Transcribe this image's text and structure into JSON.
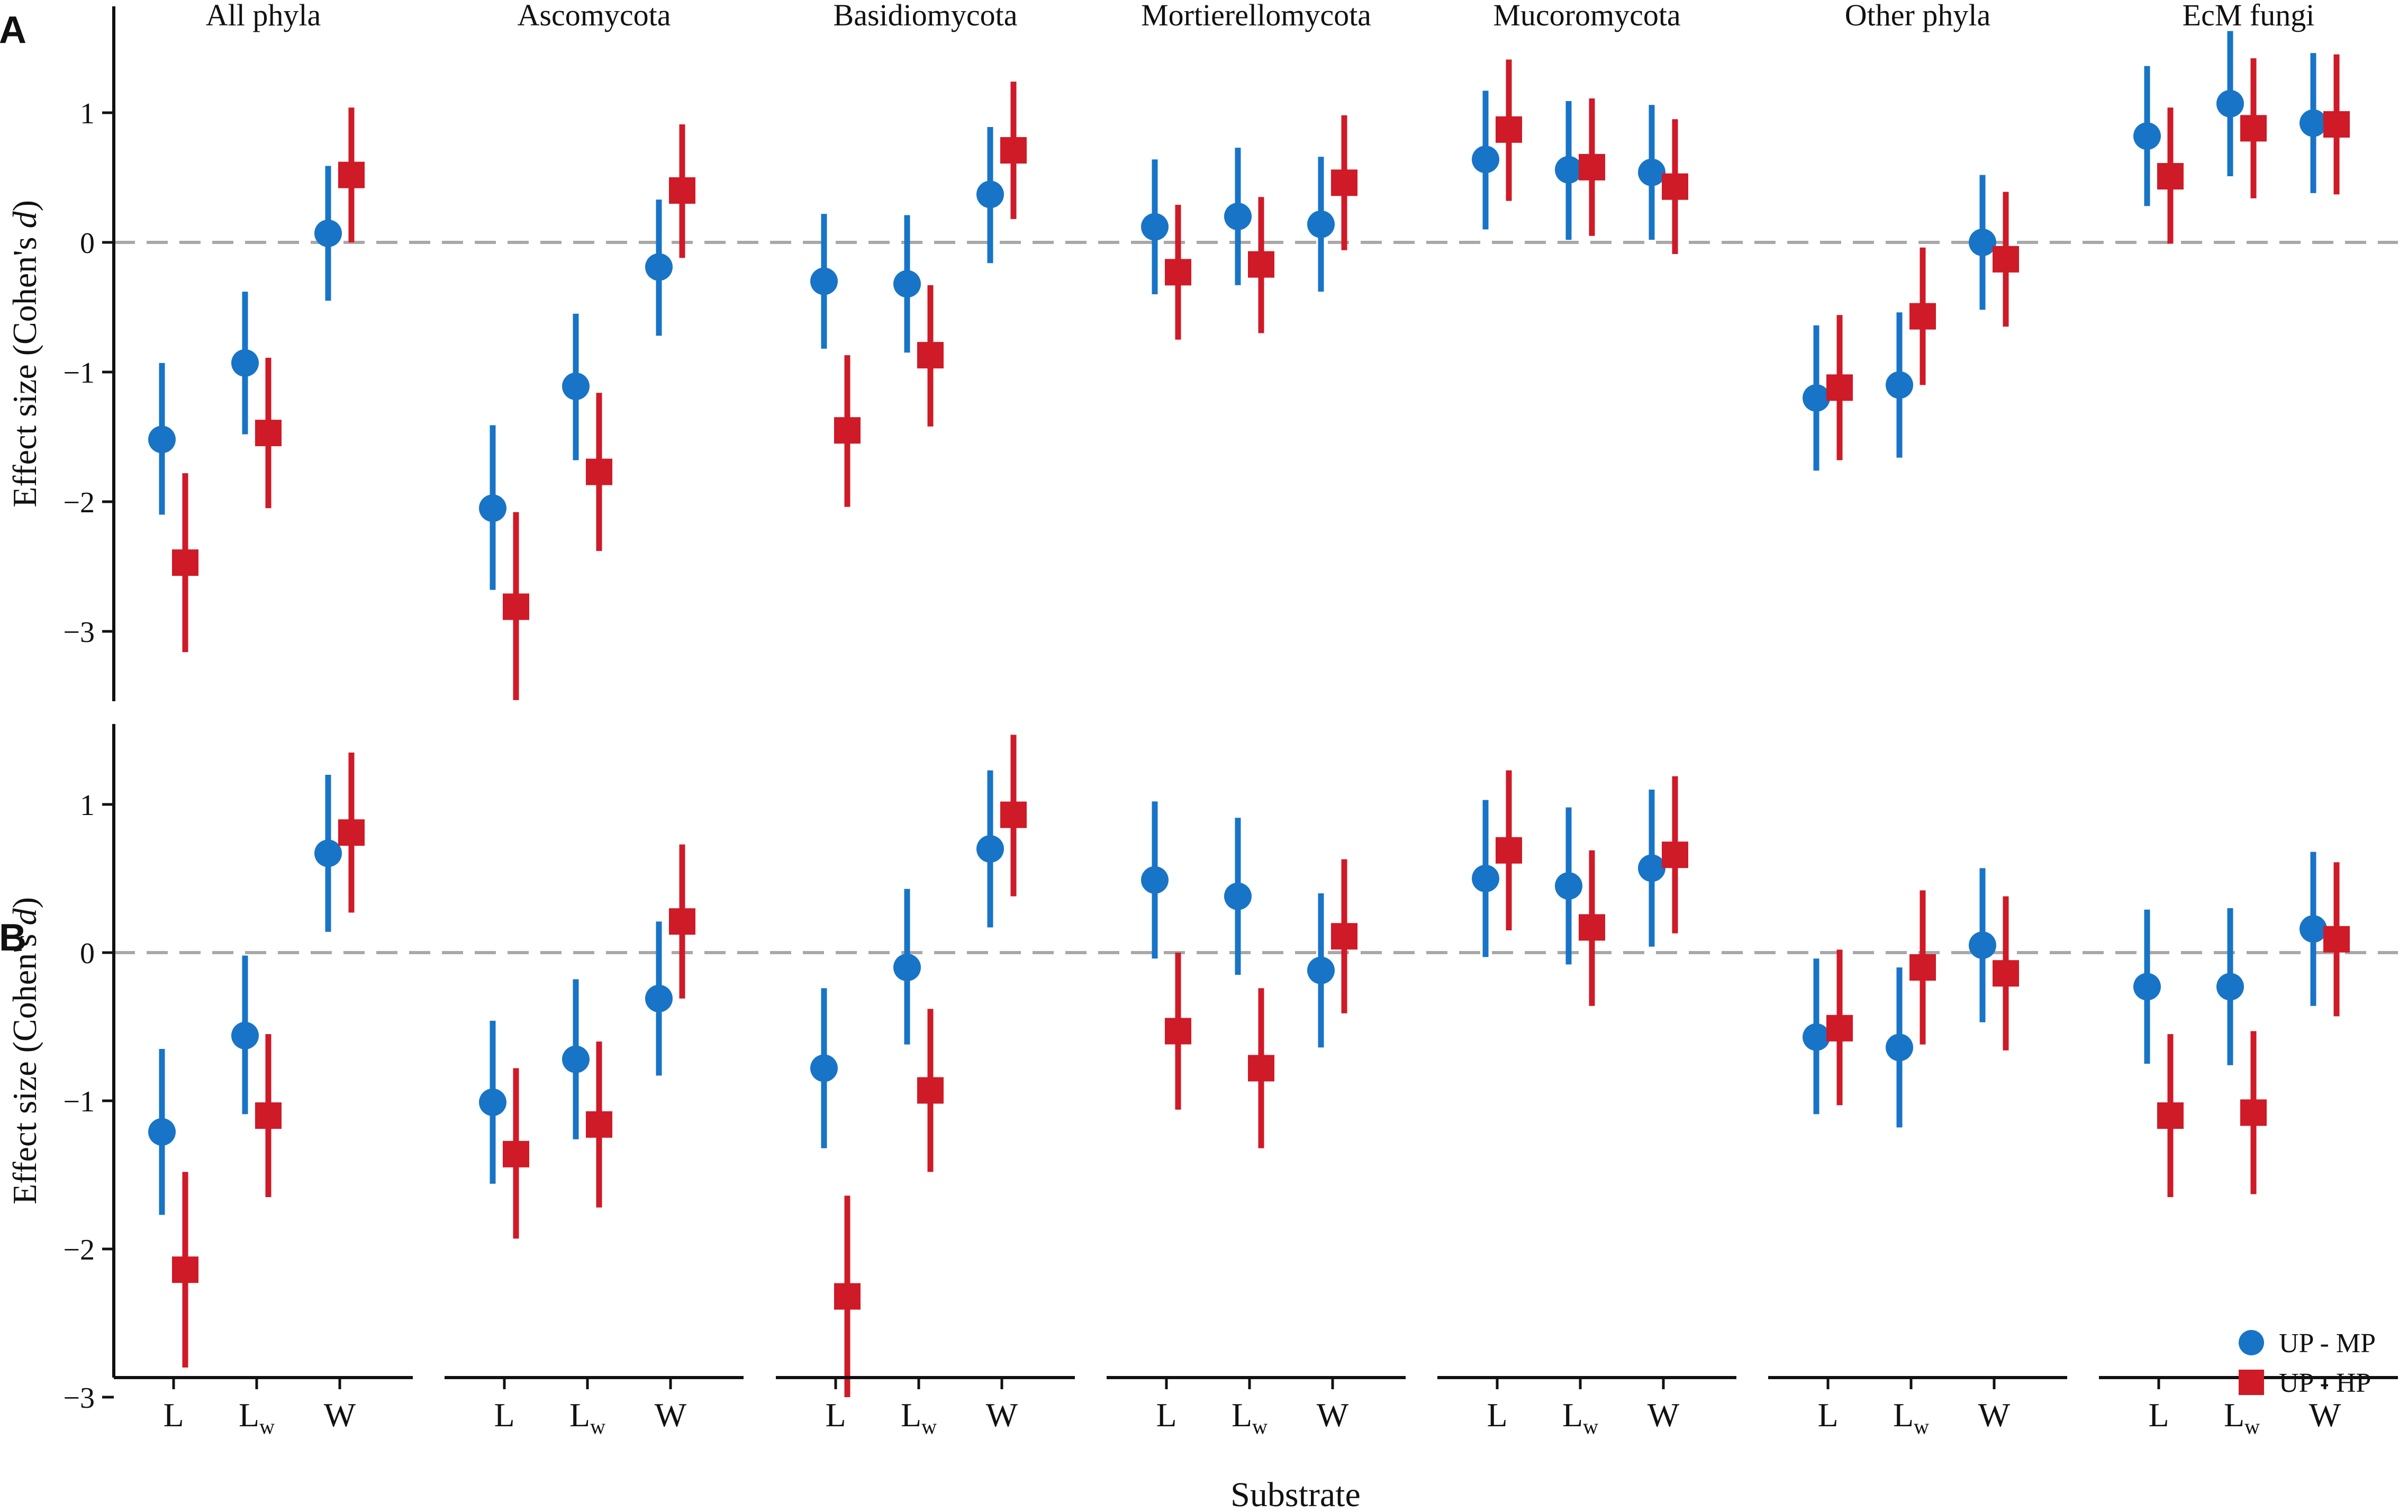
{
  "chart_data": {
    "type": "scatter",
    "style": "dot-and-whisker (point estimate with 95% CI), faceted by phylum, two panels",
    "xlabel": "Substrate",
    "ylabel": "Effect size (Cohen's d)",
    "ylabel_prefix": "Effect size (Cohen's ",
    "ylabel_italic": "d",
    "ylabel_suffix": ")",
    "facets": [
      "All phyla",
      "Ascomycota",
      "Basidiomycota",
      "Mortierellomycota",
      "Mucoromycota",
      "Other phyla",
      "EcM fungi"
    ],
    "categories": [
      {
        "base": "L",
        "sub": ""
      },
      {
        "base": "L",
        "sub": "w"
      },
      {
        "base": "W",
        "sub": ""
      }
    ],
    "legend": {
      "position": "bottom-right of panel B",
      "entries": [
        {
          "name": "UP - MP",
          "shape": "circle",
          "color": "#1874c6"
        },
        {
          "name": "UP - HP",
          "shape": "square",
          "color": "#cf1a27"
        }
      ]
    },
    "reference_line": 0,
    "panels": [
      {
        "label": "A",
        "ylim": [
          -3.52,
          1.85
        ],
        "yticks": [
          1,
          0,
          -1,
          -2,
          -3
        ],
        "ytick_labels": [
          "1",
          "0",
          "−1",
          "−2",
          "−3"
        ],
        "series": [
          {
            "name": "UP - MP",
            "facets": [
              [
                [
                  -1.52,
                  -2.1,
                  -0.93
                ],
                [
                  -0.93,
                  -1.48,
                  -0.38
                ],
                [
                  0.07,
                  -0.45,
                  0.59
                ]
              ],
              [
                [
                  -2.05,
                  -2.68,
                  -1.41
                ],
                [
                  -1.11,
                  -1.68,
                  -0.55
                ],
                [
                  -0.19,
                  -0.72,
                  0.33
                ]
              ],
              [
                [
                  -0.3,
                  -0.82,
                  0.22
                ],
                [
                  -0.32,
                  -0.85,
                  0.21
                ],
                [
                  0.37,
                  -0.16,
                  0.89
                ]
              ],
              [
                [
                  0.12,
                  -0.4,
                  0.64
                ],
                [
                  0.2,
                  -0.33,
                  0.73
                ],
                [
                  0.14,
                  -0.38,
                  0.66
                ]
              ],
              [
                [
                  0.64,
                  0.1,
                  1.17
                ],
                [
                  0.56,
                  0.02,
                  1.09
                ],
                [
                  0.54,
                  0.02,
                  1.06
                ]
              ],
              [
                [
                  -1.2,
                  -1.76,
                  -0.64
                ],
                [
                  -1.1,
                  -1.66,
                  -0.54
                ],
                [
                  0.0,
                  -0.52,
                  0.52
                ]
              ],
              [
                [
                  0.82,
                  0.28,
                  1.36
                ],
                [
                  1.07,
                  0.51,
                  1.63
                ],
                [
                  0.92,
                  0.38,
                  1.46
                ]
              ]
            ]
          },
          {
            "name": "UP - HP",
            "facets": [
              [
                [
                  -2.47,
                  -3.16,
                  -1.78
                ],
                [
                  -1.47,
                  -2.05,
                  -0.89
                ],
                [
                  0.52,
                  0.0,
                  1.04
                ]
              ],
              [
                [
                  -2.81,
                  -3.53,
                  -2.08
                ],
                [
                  -1.77,
                  -2.38,
                  -1.16
                ],
                [
                  0.4,
                  -0.12,
                  0.91
                ]
              ],
              [
                [
                  -1.45,
                  -2.04,
                  -0.87
                ],
                [
                  -0.87,
                  -1.42,
                  -0.33
                ],
                [
                  0.71,
                  0.18,
                  1.24
                ]
              ],
              [
                [
                  -0.23,
                  -0.75,
                  0.29
                ],
                [
                  -0.17,
                  -0.7,
                  0.35
                ],
                [
                  0.46,
                  -0.06,
                  0.98
                ]
              ],
              [
                [
                  0.87,
                  0.32,
                  1.41
                ],
                [
                  0.58,
                  0.05,
                  1.11
                ],
                [
                  0.43,
                  -0.09,
                  0.95
                ]
              ],
              [
                [
                  -1.12,
                  -1.68,
                  -0.56
                ],
                [
                  -0.57,
                  -1.1,
                  -0.04
                ],
                [
                  -0.13,
                  -0.65,
                  0.39
                ]
              ],
              [
                [
                  0.51,
                  -0.01,
                  1.04
                ],
                [
                  0.88,
                  0.34,
                  1.42
                ],
                [
                  0.91,
                  0.37,
                  1.45
                ]
              ]
            ]
          }
        ]
      },
      {
        "label": "B",
        "ylim": [
          -3.08,
          1.57
        ],
        "yticks": [
          1,
          0,
          -1,
          -2,
          -3
        ],
        "ytick_labels": [
          "1",
          "0",
          "−1",
          "−2",
          "−3"
        ],
        "series": [
          {
            "name": "UP - MP",
            "facets": [
              [
                [
                  -1.21,
                  -1.77,
                  -0.65
                ],
                [
                  -0.56,
                  -1.09,
                  -0.02
                ],
                [
                  0.67,
                  0.14,
                  1.2
                ]
              ],
              [
                [
                  -1.01,
                  -1.56,
                  -0.46
                ],
                [
                  -0.72,
                  -1.26,
                  -0.18
                ],
                [
                  -0.31,
                  -0.83,
                  0.21
                ]
              ],
              [
                [
                  -0.78,
                  -1.32,
                  -0.24
                ],
                [
                  -0.1,
                  -0.62,
                  0.43
                ],
                [
                  0.7,
                  0.17,
                  1.23
                ]
              ],
              [
                [
                  0.49,
                  -0.04,
                  1.02
                ],
                [
                  0.38,
                  -0.15,
                  0.91
                ],
                [
                  -0.12,
                  -0.64,
                  0.4
                ]
              ],
              [
                [
                  0.5,
                  -0.03,
                  1.03
                ],
                [
                  0.45,
                  -0.08,
                  0.98
                ],
                [
                  0.57,
                  0.04,
                  1.1
                ]
              ],
              [
                [
                  -0.57,
                  -1.09,
                  -0.04
                ],
                [
                  -0.64,
                  -1.18,
                  -0.1
                ],
                [
                  0.05,
                  -0.47,
                  0.57
                ]
              ],
              [
                [
                  -0.23,
                  -0.75,
                  0.29
                ],
                [
                  -0.23,
                  -0.76,
                  0.3
                ],
                [
                  0.16,
                  -0.36,
                  0.68
                ]
              ]
            ]
          },
          {
            "name": "UP - HP",
            "facets": [
              [
                [
                  -2.14,
                  -2.8,
                  -1.48
                ],
                [
                  -1.1,
                  -1.65,
                  -0.55
                ],
                [
                  0.81,
                  0.27,
                  1.35
                ]
              ],
              [
                [
                  -1.36,
                  -1.93,
                  -0.78
                ],
                [
                  -1.16,
                  -1.72,
                  -0.6
                ],
                [
                  0.21,
                  -0.31,
                  0.73
                ]
              ],
              [
                [
                  -2.32,
                  -3.0,
                  -1.64
                ],
                [
                  -0.93,
                  -1.48,
                  -0.38
                ],
                [
                  0.93,
                  0.38,
                  1.47
                ]
              ],
              [
                [
                  -0.53,
                  -1.06,
                  0.0
                ],
                [
                  -0.78,
                  -1.32,
                  -0.24
                ],
                [
                  0.11,
                  -0.41,
                  0.63
                ]
              ],
              [
                [
                  0.69,
                  0.15,
                  1.23
                ],
                [
                  0.17,
                  -0.36,
                  0.69
                ],
                [
                  0.66,
                  0.13,
                  1.19
                ]
              ],
              [
                [
                  -0.51,
                  -1.03,
                  0.02
                ],
                [
                  -0.1,
                  -0.62,
                  0.42
                ],
                [
                  -0.14,
                  -0.66,
                  0.38
                ]
              ],
              [
                [
                  -1.1,
                  -1.65,
                  -0.55
                ],
                [
                  -1.08,
                  -1.63,
                  -0.53
                ],
                [
                  0.09,
                  -0.43,
                  0.61
                ]
              ]
            ]
          }
        ]
      }
    ]
  }
}
